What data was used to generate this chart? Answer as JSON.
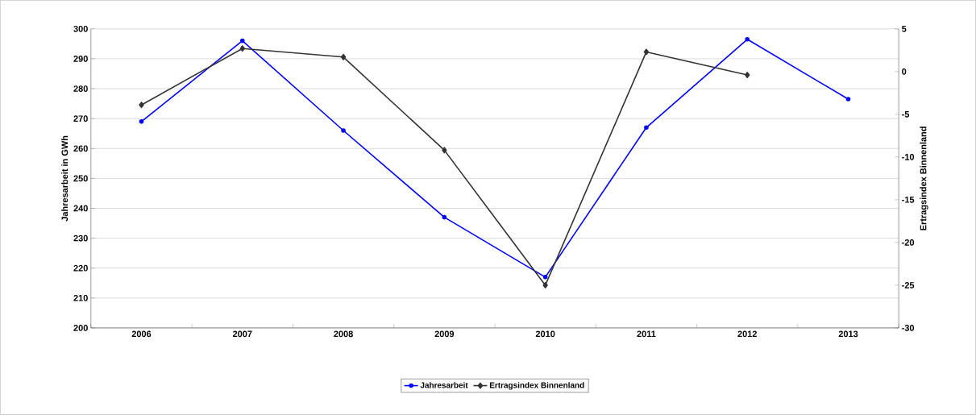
{
  "chart_data": {
    "type": "line",
    "ylabel": "Jahresarbeit in GWh",
    "y2label": "Ertragsindex Binnenland",
    "categories": [
      "2006",
      "2007",
      "2008",
      "2009",
      "2010",
      "2011",
      "2012",
      "2013"
    ],
    "series": [
      {
        "name": "Jahresarbeit",
        "color": "#0000ff",
        "marker": "circle",
        "values": [
          269,
          296,
          266,
          237,
          217,
          267,
          296.5,
          276.5
        ]
      },
      {
        "name": "Ertragsindex Binnenland",
        "color": "#333333",
        "marker": "diamond",
        "axis": "y2",
        "values": [
          -3.9,
          2.7,
          1.7,
          -9.2,
          -25,
          2.3,
          -0.4,
          null
        ]
      }
    ],
    "ylim": [
      200,
      300
    ],
    "yticks": [
      200,
      210,
      220,
      230,
      240,
      250,
      260,
      270,
      280,
      290,
      300
    ],
    "y2lim": [
      -30,
      5
    ],
    "y2ticks": [
      -30,
      -25,
      -20,
      -15,
      -10,
      -5,
      0,
      5
    ],
    "grid": "y",
    "legend": "bottom",
    "line_style": "solid"
  }
}
